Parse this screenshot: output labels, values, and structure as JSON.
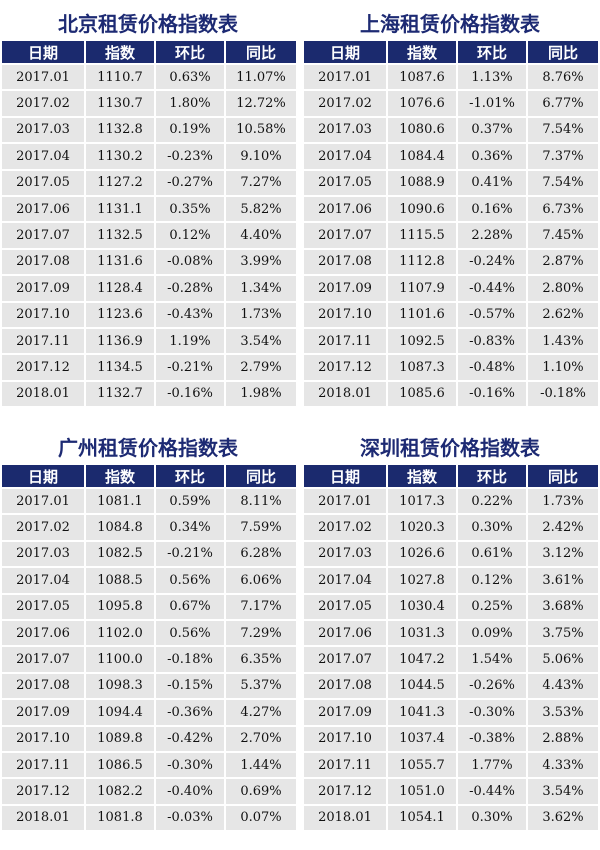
{
  "headers": [
    "日期",
    "指数",
    "环比",
    "同比"
  ],
  "tables": [
    {
      "title": "北京租赁价格指数表",
      "rows": [
        [
          "2017.01",
          "1110.7",
          "0.63%",
          "11.07%"
        ],
        [
          "2017.02",
          "1130.7",
          "1.80%",
          "12.72%"
        ],
        [
          "2017.03",
          "1132.8",
          "0.19%",
          "10.58%"
        ],
        [
          "2017.04",
          "1130.2",
          "-0.23%",
          "9.10%"
        ],
        [
          "2017.05",
          "1127.2",
          "-0.27%",
          "7.27%"
        ],
        [
          "2017.06",
          "1131.1",
          "0.35%",
          "5.82%"
        ],
        [
          "2017.07",
          "1132.5",
          "0.12%",
          "4.40%"
        ],
        [
          "2017.08",
          "1131.6",
          "-0.08%",
          "3.99%"
        ],
        [
          "2017.09",
          "1128.4",
          "-0.28%",
          "1.34%"
        ],
        [
          "2017.10",
          "1123.6",
          "-0.43%",
          "1.73%"
        ],
        [
          "2017.11",
          "1136.9",
          "1.19%",
          "3.54%"
        ],
        [
          "2017.12",
          "1134.5",
          "-0.21%",
          "2.79%"
        ],
        [
          "2018.01",
          "1132.7",
          "-0.16%",
          "1.98%"
        ]
      ]
    },
    {
      "title": "上海租赁价格指数表",
      "rows": [
        [
          "2017.01",
          "1087.6",
          "1.13%",
          "8.76%"
        ],
        [
          "2017.02",
          "1076.6",
          "-1.01%",
          "6.77%"
        ],
        [
          "2017.03",
          "1080.6",
          "0.37%",
          "7.54%"
        ],
        [
          "2017.04",
          "1084.4",
          "0.36%",
          "7.37%"
        ],
        [
          "2017.05",
          "1088.9",
          "0.41%",
          "7.54%"
        ],
        [
          "2017.06",
          "1090.6",
          "0.16%",
          "6.73%"
        ],
        [
          "2017.07",
          "1115.5",
          "2.28%",
          "7.45%"
        ],
        [
          "2017.08",
          "1112.8",
          "-0.24%",
          "2.87%"
        ],
        [
          "2017.09",
          "1107.9",
          "-0.44%",
          "2.80%"
        ],
        [
          "2017.10",
          "1101.6",
          "-0.57%",
          "2.62%"
        ],
        [
          "2017.11",
          "1092.5",
          "-0.83%",
          "1.43%"
        ],
        [
          "2017.12",
          "1087.3",
          "-0.48%",
          "1.10%"
        ],
        [
          "2018.01",
          "1085.6",
          "-0.16%",
          "-0.18%"
        ]
      ]
    },
    {
      "title": "广州租赁价格指数表",
      "rows": [
        [
          "2017.01",
          "1081.1",
          "0.59%",
          "8.11%"
        ],
        [
          "2017.02",
          "1084.8",
          "0.34%",
          "7.59%"
        ],
        [
          "2017.03",
          "1082.5",
          "-0.21%",
          "6.28%"
        ],
        [
          "2017.04",
          "1088.5",
          "0.56%",
          "6.06%"
        ],
        [
          "2017.05",
          "1095.8",
          "0.67%",
          "7.17%"
        ],
        [
          "2017.06",
          "1102.0",
          "0.56%",
          "7.29%"
        ],
        [
          "2017.07",
          "1100.0",
          "-0.18%",
          "6.35%"
        ],
        [
          "2017.08",
          "1098.3",
          "-0.15%",
          "5.37%"
        ],
        [
          "2017.09",
          "1094.4",
          "-0.36%",
          "4.27%"
        ],
        [
          "2017.10",
          "1089.8",
          "-0.42%",
          "2.70%"
        ],
        [
          "2017.11",
          "1086.5",
          "-0.30%",
          "1.44%"
        ],
        [
          "2017.12",
          "1082.2",
          "-0.40%",
          "0.69%"
        ],
        [
          "2018.01",
          "1081.8",
          "-0.03%",
          "0.07%"
        ]
      ]
    },
    {
      "title": "深圳租赁价格指数表",
      "rows": [
        [
          "2017.01",
          "1017.3",
          "0.22%",
          "1.73%"
        ],
        [
          "2017.02",
          "1020.3",
          "0.30%",
          "2.42%"
        ],
        [
          "2017.03",
          "1026.6",
          "0.61%",
          "3.12%"
        ],
        [
          "2017.04",
          "1027.8",
          "0.12%",
          "3.61%"
        ],
        [
          "2017.05",
          "1030.4",
          "0.25%",
          "3.68%"
        ],
        [
          "2017.06",
          "1031.3",
          "0.09%",
          "3.75%"
        ],
        [
          "2017.07",
          "1047.2",
          "1.54%",
          "5.06%"
        ],
        [
          "2017.08",
          "1044.5",
          "-0.26%",
          "4.43%"
        ],
        [
          "2017.09",
          "1041.3",
          "-0.30%",
          "3.53%"
        ],
        [
          "2017.10",
          "1037.4",
          "-0.38%",
          "2.88%"
        ],
        [
          "2017.11",
          "1055.7",
          "1.77%",
          "4.33%"
        ],
        [
          "2017.12",
          "1051.0",
          "-0.44%",
          "3.54%"
        ],
        [
          "2018.01",
          "1054.1",
          "0.30%",
          "3.62%"
        ]
      ]
    }
  ]
}
